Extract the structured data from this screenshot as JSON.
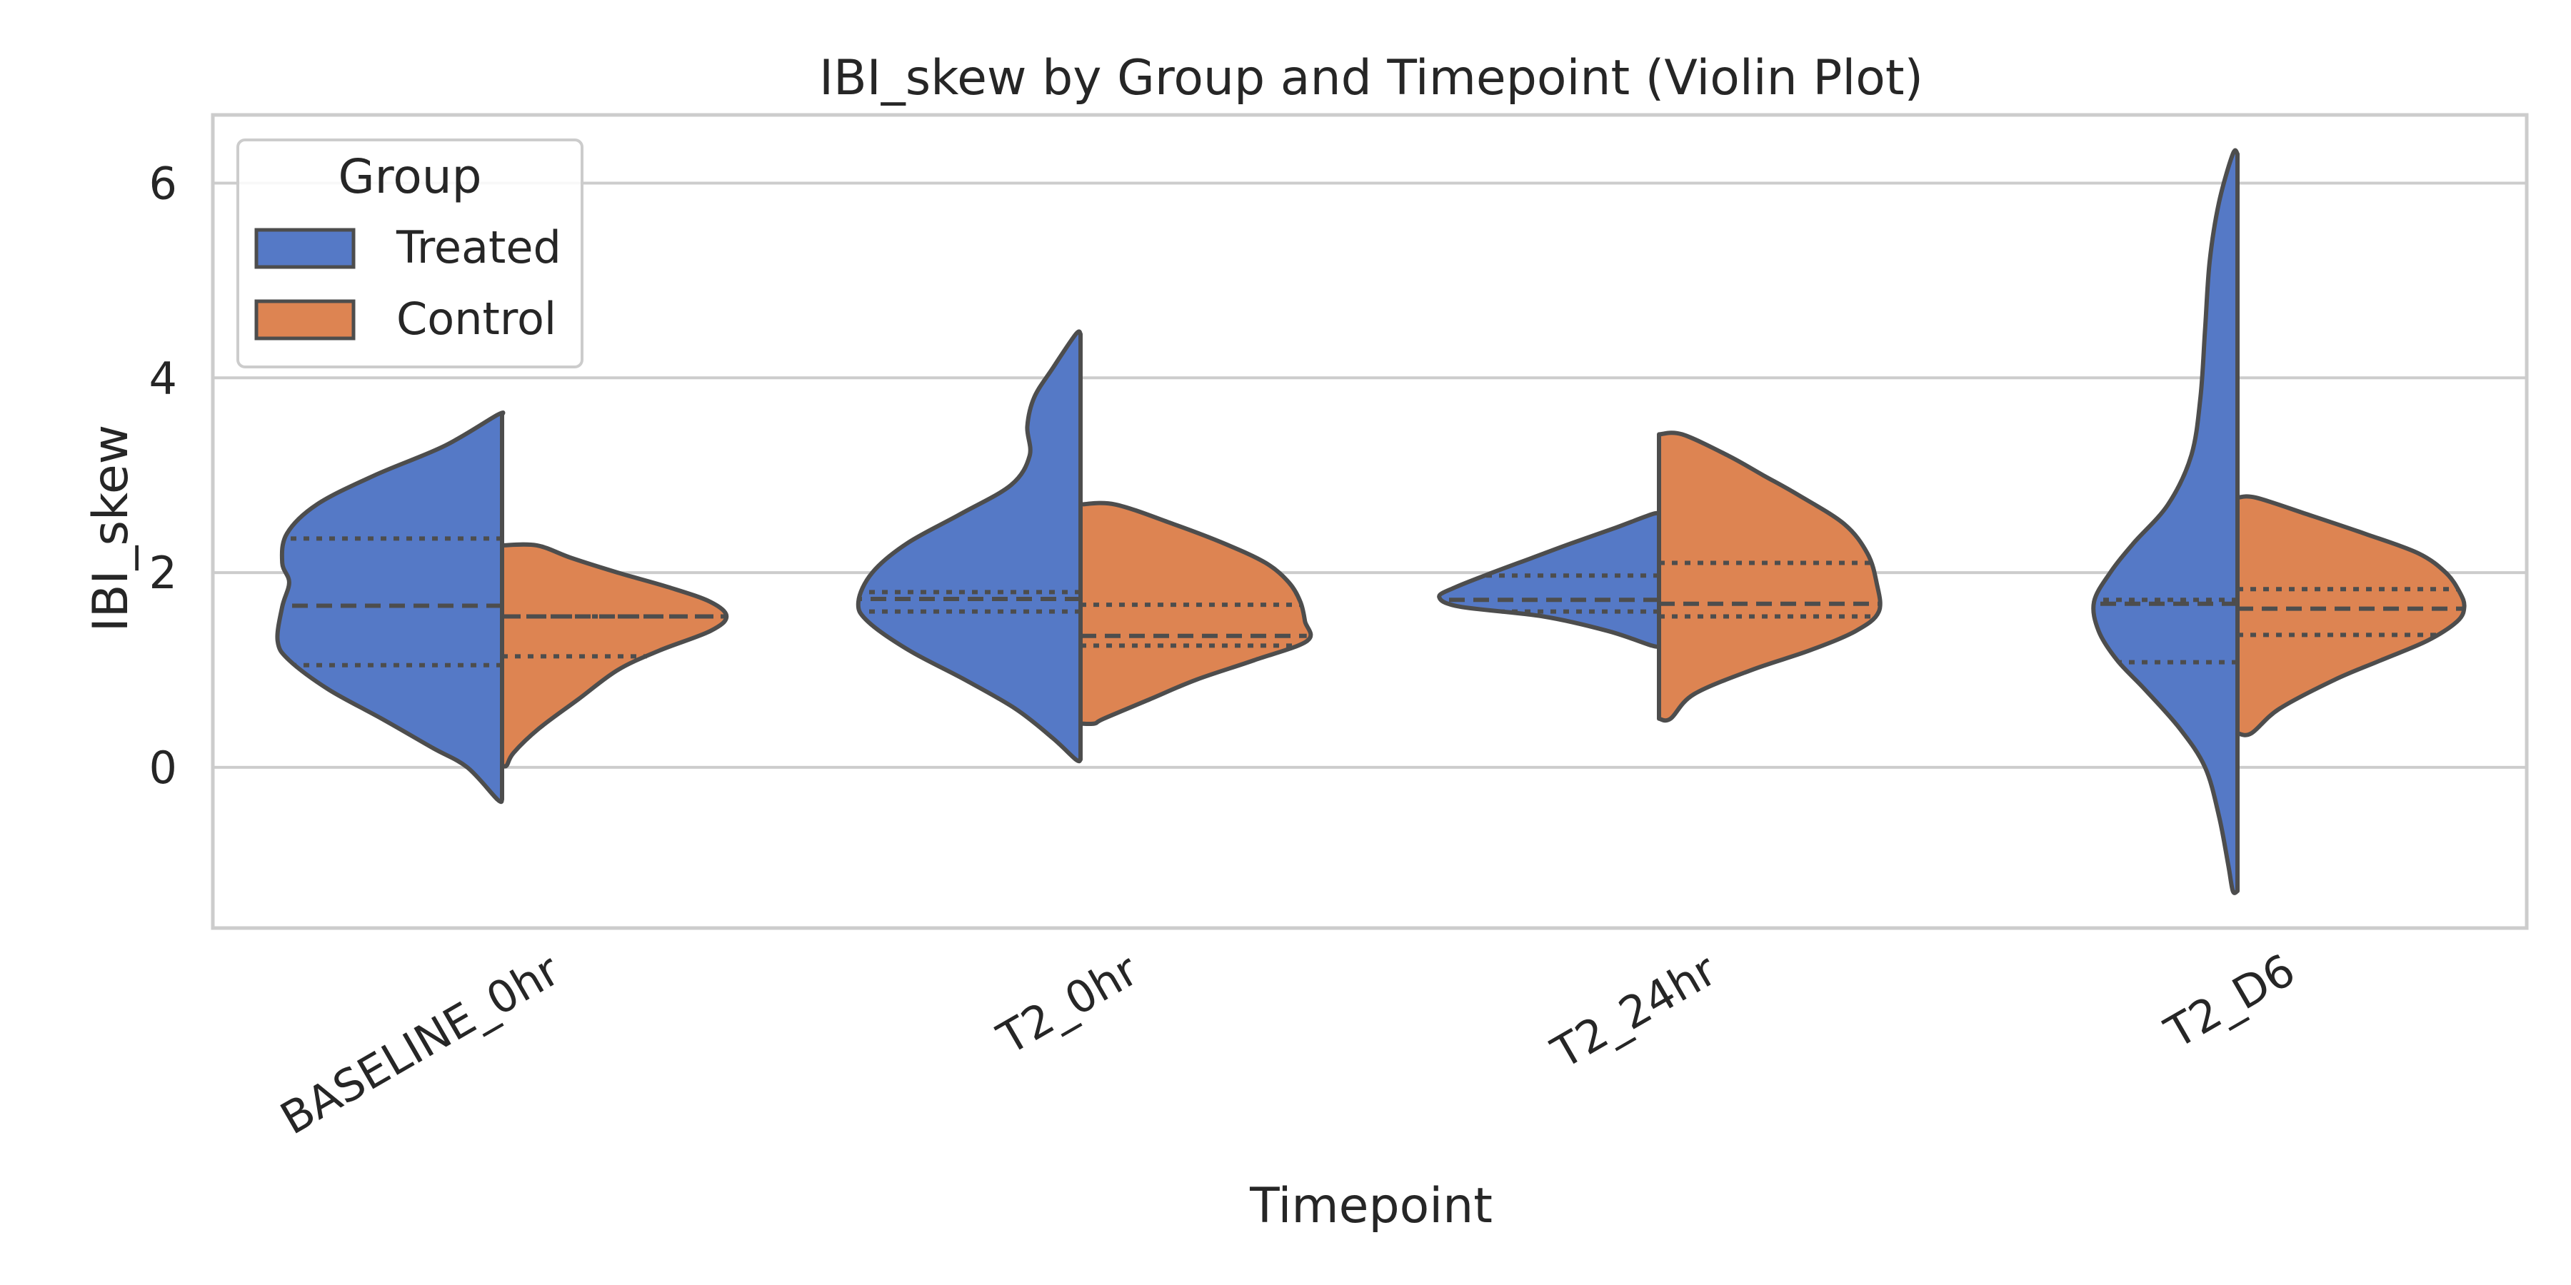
{
  "chart_data": {
    "type": "violin",
    "title": "IBI_skew by Group and Timepoint (Violin Plot)",
    "xlabel": "Timepoint",
    "ylabel": "IBI_skew",
    "categories": [
      "BASELINE_0hr",
      "T2_0hr",
      "T2_24hr",
      "T2_D6"
    ],
    "yticks": [
      0,
      2,
      4,
      6
    ],
    "ylim": [
      -1.65,
      6.7
    ],
    "grid": "horizontal",
    "split": true,
    "legend": {
      "title": "Group",
      "placement": "upper-left",
      "entries": [
        "Treated",
        "Control"
      ]
    },
    "series": [
      {
        "name": "Treated",
        "side": "left",
        "color": "#5579C6",
        "violins": [
          {
            "category": "BASELINE_0hr",
            "min": -0.33,
            "max": 3.62,
            "q1": 1.05,
            "median": 1.66,
            "q3": 2.35,
            "profile": [
              [
                3.62,
                0.02
              ],
              [
                3.3,
                0.25
              ],
              [
                3.0,
                0.55
              ],
              [
                2.7,
                0.8
              ],
              [
                2.4,
                0.93
              ],
              [
                2.1,
                0.95
              ],
              [
                1.9,
                0.92
              ],
              [
                1.65,
                0.95
              ],
              [
                1.3,
                0.97
              ],
              [
                1.1,
                0.92
              ],
              [
                0.8,
                0.75
              ],
              [
                0.5,
                0.52
              ],
              [
                0.2,
                0.3
              ],
              [
                0.0,
                0.15
              ],
              [
                -0.33,
                0.02
              ]
            ]
          },
          {
            "category": "T2_0hr",
            "min": 0.08,
            "max": 4.45,
            "q1": 1.6,
            "median": 1.73,
            "q3": 1.8,
            "profile": [
              [
                4.45,
                0.02
              ],
              [
                4.1,
                0.12
              ],
              [
                3.8,
                0.2
              ],
              [
                3.5,
                0.23
              ],
              [
                3.2,
                0.22
              ],
              [
                2.9,
                0.3
              ],
              [
                2.6,
                0.52
              ],
              [
                2.3,
                0.75
              ],
              [
                2.0,
                0.9
              ],
              [
                1.7,
                0.96
              ],
              [
                1.5,
                0.92
              ],
              [
                1.2,
                0.74
              ],
              [
                0.9,
                0.5
              ],
              [
                0.6,
                0.28
              ],
              [
                0.3,
                0.12
              ],
              [
                0.08,
                0.02
              ]
            ]
          },
          {
            "category": "T2_24hr",
            "min": 1.25,
            "max": 2.6,
            "q1": 1.6,
            "median": 1.72,
            "q3": 1.97,
            "profile": [
              [
                2.6,
                0.03
              ],
              [
                2.45,
                0.2
              ],
              [
                2.3,
                0.38
              ],
              [
                2.15,
                0.55
              ],
              [
                2.0,
                0.72
              ],
              [
                1.85,
                0.88
              ],
              [
                1.75,
                0.95
              ],
              [
                1.65,
                0.86
              ],
              [
                1.55,
                0.5
              ],
              [
                1.4,
                0.22
              ],
              [
                1.25,
                0.03
              ]
            ]
          },
          {
            "category": "T2_D6",
            "min": -1.27,
            "max": 6.3,
            "q1": 1.08,
            "median": 1.68,
            "q3": 1.72,
            "profile": [
              [
                6.3,
                0.02
              ],
              [
                5.8,
                0.08
              ],
              [
                5.2,
                0.12
              ],
              [
                4.5,
                0.14
              ],
              [
                3.8,
                0.16
              ],
              [
                3.2,
                0.2
              ],
              [
                2.7,
                0.3
              ],
              [
                2.3,
                0.45
              ],
              [
                2.0,
                0.55
              ],
              [
                1.7,
                0.62
              ],
              [
                1.4,
                0.6
              ],
              [
                1.1,
                0.52
              ],
              [
                0.8,
                0.4
              ],
              [
                0.4,
                0.25
              ],
              [
                0.0,
                0.14
              ],
              [
                -0.5,
                0.08
              ],
              [
                -1.0,
                0.04
              ],
              [
                -1.27,
                0.02
              ]
            ]
          }
        ]
      },
      {
        "name": "Control",
        "side": "right",
        "color": "#DD8452",
        "violins": [
          {
            "category": "BASELINE_0hr",
            "min": 0.02,
            "max": 2.28,
            "q1": 1.14,
            "median": 1.55,
            "q3": 1.55,
            "profile": [
              [
                2.28,
                0.15
              ],
              [
                2.15,
                0.3
              ],
              [
                2.0,
                0.5
              ],
              [
                1.85,
                0.72
              ],
              [
                1.7,
                0.9
              ],
              [
                1.55,
                0.97
              ],
              [
                1.4,
                0.9
              ],
              [
                1.2,
                0.68
              ],
              [
                1.0,
                0.5
              ],
              [
                0.7,
                0.33
              ],
              [
                0.4,
                0.16
              ],
              [
                0.15,
                0.05
              ],
              [
                0.02,
                0.02
              ]
            ]
          },
          {
            "category": "T2_0hr",
            "min": 0.45,
            "max": 2.7,
            "q1": 1.25,
            "median": 1.35,
            "q3": 1.67,
            "profile": [
              [
                2.7,
                0.15
              ],
              [
                2.5,
                0.4
              ],
              [
                2.3,
                0.62
              ],
              [
                2.1,
                0.8
              ],
              [
                1.9,
                0.9
              ],
              [
                1.7,
                0.95
              ],
              [
                1.5,
                0.97
              ],
              [
                1.3,
                0.98
              ],
              [
                1.1,
                0.75
              ],
              [
                0.9,
                0.5
              ],
              [
                0.7,
                0.3
              ],
              [
                0.5,
                0.1
              ],
              [
                0.45,
                0.06
              ]
            ]
          },
          {
            "category": "T2_24hr",
            "min": 0.5,
            "max": 3.42,
            "q1": 1.55,
            "median": 1.68,
            "q3": 2.1,
            "profile": [
              [
                3.42,
                0.1
              ],
              [
                3.2,
                0.3
              ],
              [
                3.0,
                0.45
              ],
              [
                2.8,
                0.6
              ],
              [
                2.5,
                0.8
              ],
              [
                2.2,
                0.9
              ],
              [
                1.9,
                0.94
              ],
              [
                1.6,
                0.95
              ],
              [
                1.4,
                0.85
              ],
              [
                1.2,
                0.65
              ],
              [
                1.0,
                0.4
              ],
              [
                0.75,
                0.15
              ],
              [
                0.5,
                0.05
              ]
            ]
          },
          {
            "category": "T2_D6",
            "min": 0.35,
            "max": 2.77,
            "q1": 1.36,
            "median": 1.63,
            "q3": 1.83,
            "profile": [
              [
                2.77,
                0.08
              ],
              [
                2.6,
                0.3
              ],
              [
                2.4,
                0.55
              ],
              [
                2.2,
                0.78
              ],
              [
                2.0,
                0.9
              ],
              [
                1.8,
                0.96
              ],
              [
                1.65,
                0.98
              ],
              [
                1.5,
                0.95
              ],
              [
                1.3,
                0.82
              ],
              [
                1.1,
                0.62
              ],
              [
                0.9,
                0.42
              ],
              [
                0.6,
                0.18
              ],
              [
                0.35,
                0.06
              ]
            ]
          }
        ]
      }
    ]
  }
}
